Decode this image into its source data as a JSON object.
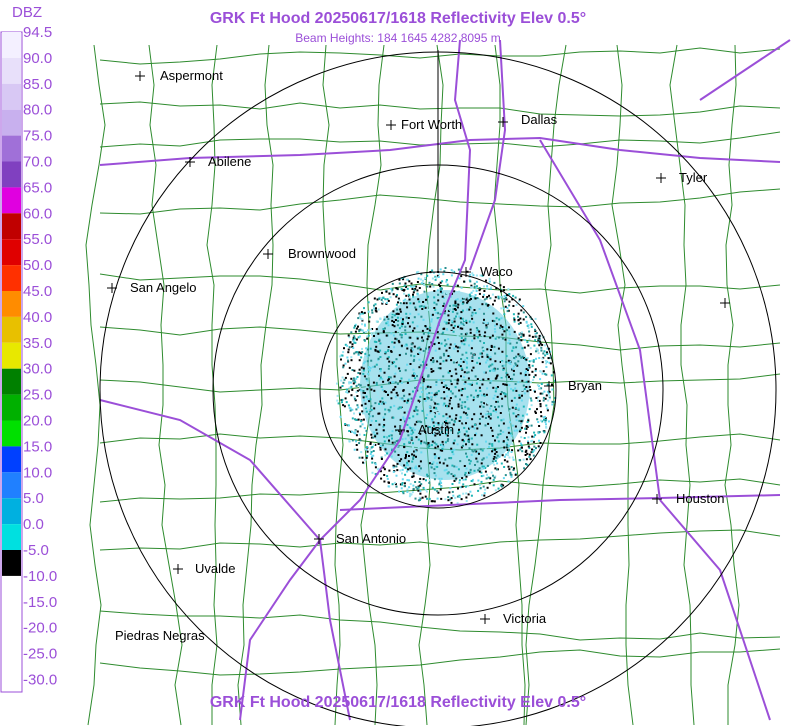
{
  "header": {
    "title": "GRK Ft Hood 20250617/1618 Reflectivity Elev 0.5°",
    "subtitle": "Beam Heights: 184 1645 4282 8095 m"
  },
  "legend": {
    "title": "DBZ",
    "labels": [
      "94.5",
      "90.0",
      "85.0",
      "80.0",
      "75.0",
      "70.0",
      "65.0",
      "60.0",
      "55.0",
      "50.0",
      "45.0",
      "40.0",
      "35.0",
      "30.0",
      "25.0",
      "20.0",
      "15.0",
      "10.0",
      "5.0",
      "0.0",
      "-5.0",
      "-10.0",
      "-15.0",
      "-20.0",
      "-25.0",
      "-30.0"
    ]
  },
  "cities": [
    "Aspermont",
    "Fort Worth",
    "Dallas",
    "Abilene",
    "Tyler",
    "Brownwood",
    "Waco",
    "San Angelo",
    "Bryan",
    "Austin",
    "Houston",
    "San Antonio",
    "Uvalde",
    "Victoria",
    "Piedras Negras"
  ],
  "footer": {
    "title": "GRK Ft Hood 20250617/1618 Reflectivity Elev 0.5°"
  }
}
